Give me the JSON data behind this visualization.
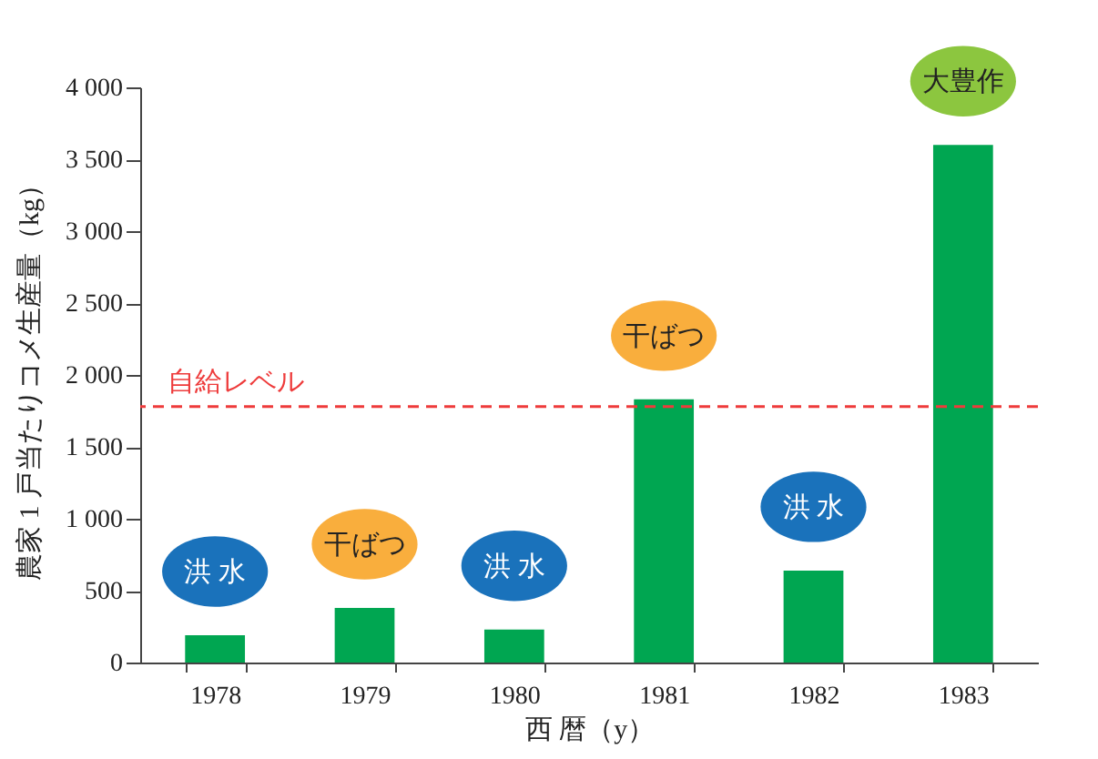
{
  "chart_data": {
    "type": "bar",
    "xlabel": "西 暦（y）",
    "ylabel": "農家 1 戸当たりコメ生産量（kg）",
    "categories": [
      "1978",
      "1979",
      "1980",
      "1981",
      "1982",
      "1983"
    ],
    "values": [
      190,
      380,
      230,
      1830,
      640,
      3600
    ],
    "color": "#00a651",
    "ylim": [
      0,
      4000
    ],
    "yticks": [
      0,
      500,
      {
        "value": 1000,
        "label": "1 000"
      },
      {
        "value": 1500,
        "label": "1 500"
      },
      {
        "value": 2000,
        "label": "2 000"
      },
      {
        "value": 2500,
        "label": "2 500"
      },
      {
        "value": 3000,
        "label": "3 000"
      },
      {
        "value": 3500,
        "label": "3 500"
      },
      {
        "value": 4000,
        "label": "4 000"
      }
    ],
    "grid": false,
    "ref_lines": [
      {
        "axis": "y",
        "value": 1780,
        "label": "自給レベル",
        "color": "#ee3b3b",
        "line_style": "dashed"
      }
    ],
    "annotations": [
      "洪 水",
      "干ばつ",
      "洪 水",
      "干ばつ",
      "洪 水",
      "大豊作"
    ]
  }
}
